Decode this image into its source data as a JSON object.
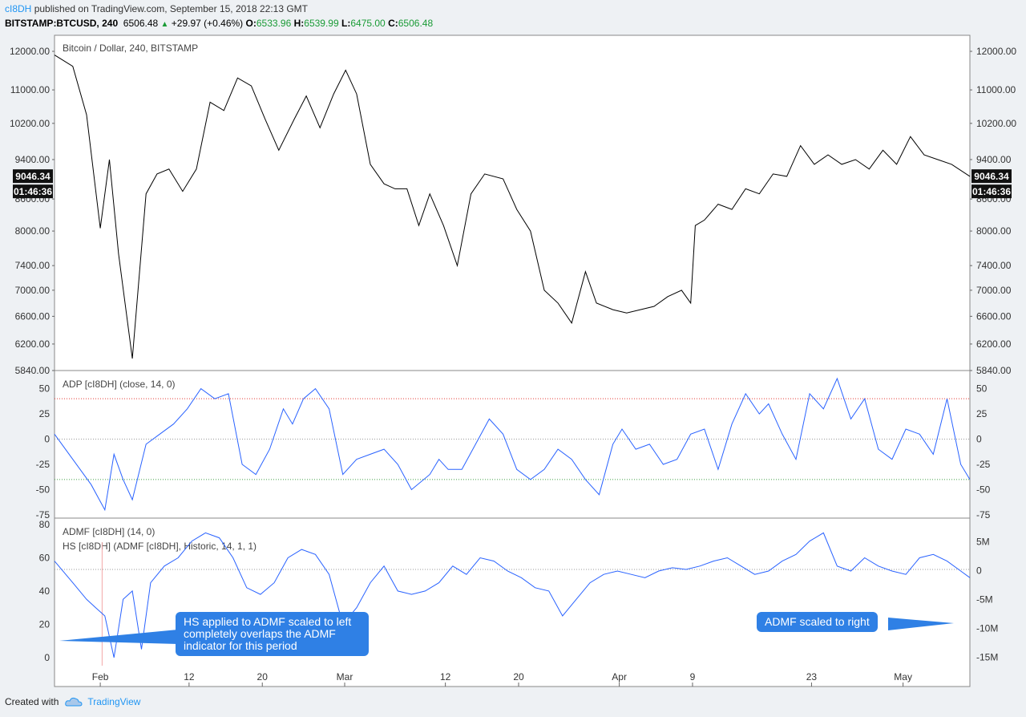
{
  "header": {
    "publisher": "cI8DH",
    "published_text": "published on TradingView.com, September 15, 2018 22:13 GMT",
    "symbol": "BITSTAMP:BTCUSD, 240",
    "last": "6506.48",
    "change": "+29.97 (+0.46%)",
    "open_label": "O:",
    "open": "6533.96",
    "high_label": "H:",
    "high": "6539.99",
    "low_label": "L:",
    "low": "6475.00",
    "close_label": "C:",
    "close": "6506.48"
  },
  "footer": {
    "created_with": "Created with",
    "brand": "TradingView"
  },
  "colors": {
    "price_line": "#000000",
    "indicator_line": "#2962ff",
    "callout_bg": "#2f80e5",
    "upper_band": "#e53935",
    "lower_band": "#43a047"
  },
  "callouts": [
    {
      "text": "HS applied to ADMF scaled to left completely overlaps the ADMF indicator for this period"
    },
    {
      "text": "ADMF scaled to right"
    }
  ],
  "chart_data": [
    {
      "type": "line",
      "title": "Bitcoin / Dollar, 240, BITSTAMP",
      "y_ticks": [
        5840,
        6200,
        6600,
        7000,
        7400,
        8000,
        8600,
        9400,
        10200,
        11000,
        12000
      ],
      "y_tick_labels": [
        "5840.00",
        "6200.00",
        "6600.00",
        "7000.00",
        "7400.00",
        "8000.00",
        "8600.00",
        "9400.00",
        "10200.00",
        "11000.00",
        "12000.00"
      ],
      "ylim": [
        5840,
        12000
      ],
      "price_label": "9046.34",
      "timer_label": "01:46:36",
      "x_tick_labels": [
        "Feb",
        "12",
        "20",
        "Mar",
        "12",
        "20",
        "Apr",
        "9",
        "23",
        "May"
      ],
      "x_tick_positions": [
        0.05,
        0.147,
        0.227,
        0.317,
        0.427,
        0.507,
        0.617,
        0.697,
        0.827,
        0.927
      ],
      "x": [
        0.0,
        0.02,
        0.035,
        0.05,
        0.06,
        0.07,
        0.085,
        0.1,
        0.112,
        0.125,
        0.14,
        0.155,
        0.17,
        0.185,
        0.2,
        0.215,
        0.23,
        0.245,
        0.262,
        0.275,
        0.29,
        0.305,
        0.318,
        0.33,
        0.345,
        0.36,
        0.372,
        0.385,
        0.398,
        0.41,
        0.425,
        0.44,
        0.455,
        0.47,
        0.49,
        0.505,
        0.52,
        0.535,
        0.55,
        0.565,
        0.58,
        0.592,
        0.61,
        0.625,
        0.64,
        0.655,
        0.67,
        0.685,
        0.695,
        0.7,
        0.71,
        0.725,
        0.74,
        0.755,
        0.77,
        0.785,
        0.8,
        0.815,
        0.83,
        0.845,
        0.86,
        0.875,
        0.89,
        0.905,
        0.92,
        0.935,
        0.95,
        0.965,
        0.98,
        1.0
      ],
      "series": [
        {
          "values": [
            11900,
            11600,
            10400,
            8050,
            9400,
            7600,
            6000,
            8700,
            9100,
            9200,
            8750,
            9200,
            10700,
            10500,
            11300,
            11100,
            10300,
            9600,
            10300,
            10850,
            10100,
            10900,
            11500,
            10900,
            9300,
            8900,
            8800,
            8800,
            8100,
            8700,
            8100,
            7400,
            8700,
            9100,
            9000,
            8400,
            8000,
            7000,
            6800,
            6500,
            7300,
            6800,
            6700,
            6650,
            6700,
            6750,
            6900,
            7000,
            6800,
            8100,
            8200,
            8500,
            8400,
            8800,
            8700,
            9100,
            9050,
            9700,
            9300,
            9500,
            9300,
            9400,
            9200,
            9600,
            9300,
            9900,
            9500,
            9400,
            9300,
            9050
          ]
        }
      ]
    },
    {
      "type": "line",
      "title": "ADP [cI8DH] (close, 14, 0)",
      "y_ticks": [
        -75,
        -50,
        -25,
        0,
        25,
        50
      ],
      "y_tick_labels": [
        "-75",
        "-50",
        "-25",
        "0",
        "25",
        "50"
      ],
      "ylim": [
        -75,
        60
      ],
      "reference_lines": [
        {
          "value": 40,
          "color": "#e53935"
        },
        {
          "value": 0,
          "color": "#999999"
        },
        {
          "value": -40,
          "color": "#43a047"
        }
      ],
      "x": [
        0.0,
        0.02,
        0.04,
        0.055,
        0.065,
        0.075,
        0.085,
        0.1,
        0.115,
        0.13,
        0.145,
        0.16,
        0.175,
        0.19,
        0.205,
        0.22,
        0.235,
        0.25,
        0.26,
        0.272,
        0.285,
        0.3,
        0.315,
        0.33,
        0.345,
        0.36,
        0.375,
        0.39,
        0.41,
        0.42,
        0.43,
        0.445,
        0.46,
        0.475,
        0.49,
        0.505,
        0.52,
        0.535,
        0.55,
        0.565,
        0.58,
        0.595,
        0.61,
        0.62,
        0.635,
        0.65,
        0.665,
        0.68,
        0.695,
        0.71,
        0.725,
        0.74,
        0.755,
        0.77,
        0.78,
        0.795,
        0.81,
        0.825,
        0.84,
        0.855,
        0.87,
        0.885,
        0.9,
        0.915,
        0.93,
        0.945,
        0.96,
        0.975,
        0.99,
        1.0
      ],
      "series": [
        {
          "values": [
            5,
            -20,
            -45,
            -70,
            -15,
            -40,
            -60,
            -5,
            5,
            15,
            30,
            50,
            40,
            45,
            -25,
            -35,
            -10,
            30,
            15,
            40,
            50,
            30,
            -35,
            -20,
            -15,
            -10,
            -25,
            -50,
            -35,
            -20,
            -30,
            -30,
            -5,
            20,
            5,
            -30,
            -40,
            -30,
            -10,
            -20,
            -40,
            -55,
            -5,
            10,
            -10,
            -5,
            -25,
            -20,
            5,
            10,
            -30,
            15,
            45,
            25,
            35,
            5,
            -20,
            45,
            30,
            60,
            20,
            40,
            -10,
            -20,
            10,
            5,
            -15,
            40,
            -25,
            -40
          ]
        }
      ]
    },
    {
      "type": "line",
      "title": "ADMF [cI8DH] (14, 0)",
      "subtitle": "HS [cI8DH] (ADMF [cI8DH], Historic, 14, 1, 1)",
      "y_ticks": [
        0,
        20,
        40,
        60,
        80
      ],
      "y_tick_labels": [
        "0",
        "20",
        "40",
        "60",
        "80"
      ],
      "ylim": [
        -2,
        80
      ],
      "right_axis_ticks": [
        -15,
        -10,
        -5,
        0,
        5
      ],
      "right_axis_labels": [
        "-15M",
        "-10M",
        "-5M",
        "0",
        "5M"
      ],
      "right_axis_range": [
        -15.6,
        8
      ],
      "reference_line": 53,
      "x": [
        0.0,
        0.02,
        0.035,
        0.045,
        0.055,
        0.065,
        0.075,
        0.085,
        0.095,
        0.105,
        0.12,
        0.135,
        0.15,
        0.165,
        0.18,
        0.195,
        0.21,
        0.225,
        0.24,
        0.255,
        0.27,
        0.285,
        0.3,
        0.315,
        0.33,
        0.345,
        0.36,
        0.375,
        0.39,
        0.405,
        0.42,
        0.435,
        0.45,
        0.465,
        0.48,
        0.495,
        0.51,
        0.525,
        0.54,
        0.555,
        0.57,
        0.585,
        0.6,
        0.615,
        0.63,
        0.645,
        0.66,
        0.675,
        0.69,
        0.705,
        0.72,
        0.735,
        0.75,
        0.765,
        0.78,
        0.795,
        0.81,
        0.825,
        0.84,
        0.855,
        0.87,
        0.885,
        0.9,
        0.915,
        0.93,
        0.945,
        0.96,
        0.975,
        0.99,
        1.0
      ],
      "series": [
        {
          "values": [
            58,
            45,
            35,
            30,
            25,
            0,
            35,
            40,
            5,
            45,
            55,
            60,
            70,
            75,
            72,
            60,
            42,
            38,
            45,
            60,
            65,
            62,
            50,
            20,
            30,
            45,
            55,
            40,
            38,
            40,
            45,
            55,
            50,
            60,
            58,
            52,
            48,
            42,
            40,
            25,
            35,
            45,
            50,
            52,
            50,
            48,
            52,
            54,
            53,
            55,
            58,
            60,
            55,
            50,
            52,
            58,
            62,
            70,
            75,
            55,
            52,
            60,
            55,
            52,
            50,
            60,
            62,
            58,
            52,
            48
          ]
        }
      ]
    }
  ]
}
